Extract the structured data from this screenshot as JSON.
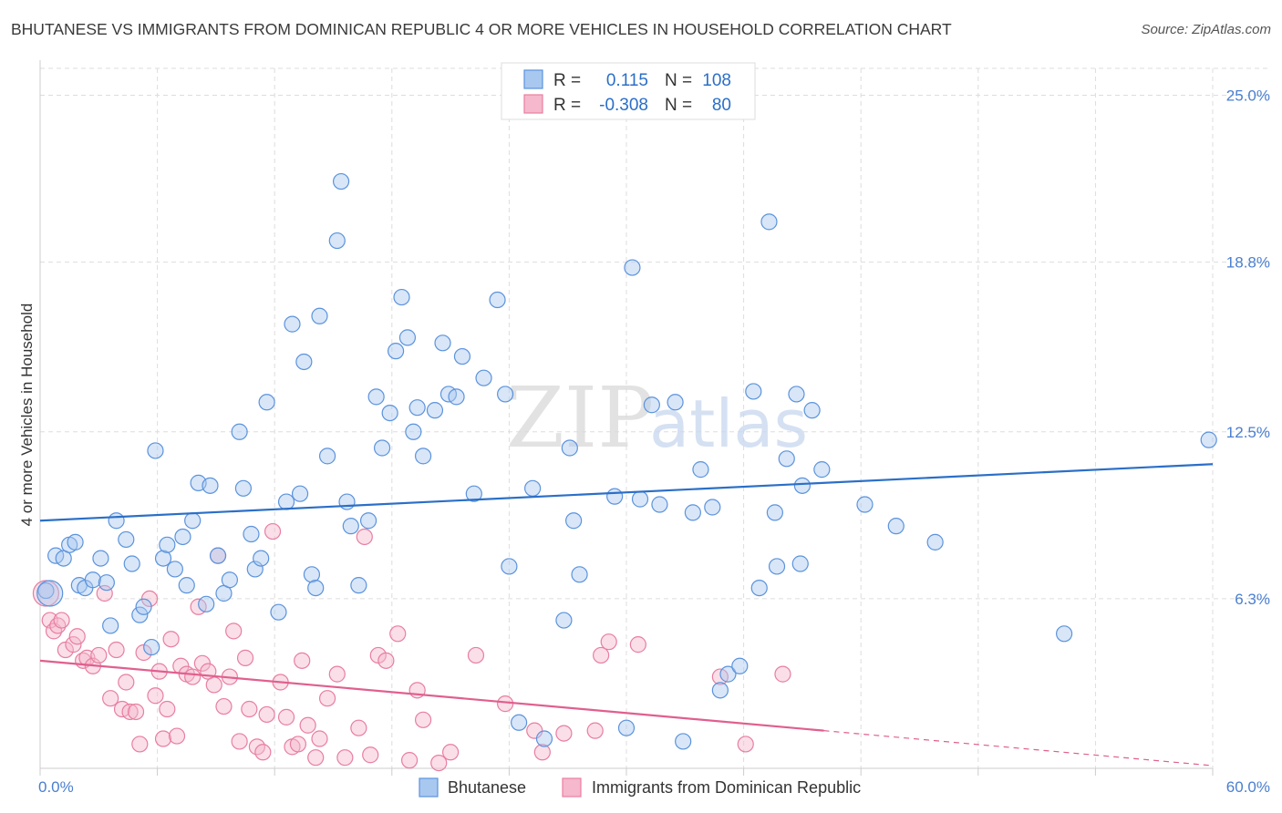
{
  "header": {
    "title": "BHUTANESE VS IMMIGRANTS FROM DOMINICAN REPUBLIC 4 OR MORE VEHICLES IN HOUSEHOLD CORRELATION CHART",
    "source": "Source: ZipAtlas.com"
  },
  "watermark": {
    "zip": "ZIP",
    "atlas": "atlas"
  },
  "colors": {
    "blue_fill": "#a9c8f0",
    "blue_stroke": "#5b93dc",
    "blue_line": "#2b6fc7",
    "pink_fill": "#f5b8cc",
    "pink_stroke": "#e87ea0",
    "pink_line": "#e05f8e",
    "grid": "#dddddd",
    "tick_text": "#4a7fcf"
  },
  "legend": {
    "rows": [
      {
        "r_label": "R =",
        "r_value": "0.115",
        "n_label": "N =",
        "n_value": "108"
      },
      {
        "r_label": "R =",
        "r_value": "-0.308",
        "n_label": "N =",
        "n_value": "80"
      }
    ]
  },
  "chart_data": {
    "type": "scatter",
    "title": "BHUTANESE VS IMMIGRANTS FROM DOMINICAN REPUBLIC 4 OR MORE VEHICLES IN HOUSEHOLD CORRELATION CHART",
    "ylabel": "4 or more Vehicles in Household",
    "xlim": [
      0,
      60
    ],
    "ylim": [
      0,
      26
    ],
    "y_ticks": [
      {
        "value": 6.3,
        "label": "6.3%"
      },
      {
        "value": 12.5,
        "label": "12.5%"
      },
      {
        "value": 18.8,
        "label": "18.8%"
      },
      {
        "value": 25.0,
        "label": "25.0%"
      }
    ],
    "x_tick_labels": {
      "min": "0.0%",
      "max": "60.0%"
    },
    "grid": true,
    "series": [
      {
        "name": "Bhutanese",
        "color": "#5b93dc",
        "trend": {
          "x0": 0,
          "y0": 9.2,
          "x1": 60,
          "y1": 11.3
        },
        "points": [
          [
            0.3,
            6.6
          ],
          [
            0.8,
            7.9
          ],
          [
            1.2,
            7.8
          ],
          [
            1.5,
            8.3
          ],
          [
            1.8,
            8.4
          ],
          [
            2.0,
            6.8
          ],
          [
            2.3,
            6.7
          ],
          [
            2.7,
            7.0
          ],
          [
            3.1,
            7.8
          ],
          [
            3.4,
            6.9
          ],
          [
            3.6,
            5.3
          ],
          [
            3.9,
            9.2
          ],
          [
            4.4,
            8.5
          ],
          [
            4.7,
            7.6
          ],
          [
            5.1,
            5.7
          ],
          [
            5.3,
            6.0
          ],
          [
            5.7,
            4.5
          ],
          [
            5.9,
            11.8
          ],
          [
            6.3,
            7.8
          ],
          [
            6.5,
            8.3
          ],
          [
            6.9,
            7.4
          ],
          [
            7.3,
            8.6
          ],
          [
            7.5,
            6.8
          ],
          [
            7.8,
            9.2
          ],
          [
            8.1,
            10.6
          ],
          [
            8.5,
            6.1
          ],
          [
            8.7,
            10.5
          ],
          [
            9.1,
            7.9
          ],
          [
            9.4,
            6.5
          ],
          [
            9.7,
            7.0
          ],
          [
            10.2,
            12.5
          ],
          [
            10.4,
            10.4
          ],
          [
            10.8,
            8.7
          ],
          [
            11.0,
            7.4
          ],
          [
            11.3,
            7.8
          ],
          [
            11.6,
            13.6
          ],
          [
            12.2,
            5.8
          ],
          [
            12.6,
            9.9
          ],
          [
            12.9,
            16.5
          ],
          [
            13.3,
            10.2
          ],
          [
            13.5,
            15.1
          ],
          [
            13.9,
            7.2
          ],
          [
            14.1,
            6.7
          ],
          [
            14.3,
            16.8
          ],
          [
            14.7,
            11.6
          ],
          [
            15.2,
            19.6
          ],
          [
            15.4,
            21.8
          ],
          [
            15.7,
            9.9
          ],
          [
            15.9,
            9.0
          ],
          [
            16.3,
            6.8
          ],
          [
            16.8,
            9.2
          ],
          [
            17.2,
            13.8
          ],
          [
            17.5,
            11.9
          ],
          [
            17.9,
            13.2
          ],
          [
            18.2,
            15.5
          ],
          [
            18.5,
            17.5
          ],
          [
            18.8,
            16.0
          ],
          [
            19.1,
            12.5
          ],
          [
            19.3,
            13.4
          ],
          [
            19.6,
            11.6
          ],
          [
            20.2,
            13.3
          ],
          [
            20.6,
            15.8
          ],
          [
            20.9,
            13.9
          ],
          [
            21.3,
            13.8
          ],
          [
            21.6,
            15.3
          ],
          [
            22.2,
            10.2
          ],
          [
            22.7,
            14.5
          ],
          [
            23.4,
            17.4
          ],
          [
            23.8,
            13.9
          ],
          [
            24.0,
            7.5
          ],
          [
            24.5,
            1.7
          ],
          [
            25.2,
            10.4
          ],
          [
            25.8,
            1.1
          ],
          [
            26.8,
            5.5
          ],
          [
            27.1,
            11.9
          ],
          [
            27.3,
            9.2
          ],
          [
            27.6,
            7.2
          ],
          [
            29.4,
            10.1
          ],
          [
            30.0,
            1.5
          ],
          [
            30.3,
            18.6
          ],
          [
            30.7,
            10.0
          ],
          [
            31.3,
            13.5
          ],
          [
            31.7,
            9.8
          ],
          [
            32.5,
            13.6
          ],
          [
            32.9,
            1.0
          ],
          [
            33.4,
            9.5
          ],
          [
            33.8,
            11.1
          ],
          [
            34.4,
            9.7
          ],
          [
            34.8,
            2.9
          ],
          [
            35.2,
            3.5
          ],
          [
            35.8,
            3.8
          ],
          [
            36.5,
            14.0
          ],
          [
            36.8,
            6.7
          ],
          [
            37.3,
            20.3
          ],
          [
            37.6,
            9.5
          ],
          [
            37.7,
            7.5
          ],
          [
            38.2,
            11.5
          ],
          [
            38.7,
            13.9
          ],
          [
            38.9,
            7.6
          ],
          [
            39.0,
            10.5
          ],
          [
            39.5,
            13.3
          ],
          [
            40.0,
            11.1
          ],
          [
            42.2,
            9.8
          ],
          [
            43.8,
            9.0
          ],
          [
            45.8,
            8.4
          ],
          [
            52.4,
            5.0
          ],
          [
            59.8,
            12.2
          ],
          [
            0.5,
            6.5
          ]
        ]
      },
      {
        "name": "Immigrants from Dominican Republic",
        "color": "#e87ea0",
        "trend": {
          "x0": 0,
          "y0": 4.0,
          "x1": 40.1,
          "y1": 1.4
        },
        "trend_dashed": {
          "x0": 40.1,
          "y0": 1.4,
          "x1": 60,
          "y1": 0.1
        },
        "points": [
          [
            0.3,
            6.5
          ],
          [
            0.5,
            5.5
          ],
          [
            0.7,
            5.1
          ],
          [
            0.9,
            5.3
          ],
          [
            1.1,
            5.5
          ],
          [
            1.3,
            4.4
          ],
          [
            1.7,
            4.6
          ],
          [
            1.9,
            4.9
          ],
          [
            2.2,
            4.0
          ],
          [
            2.4,
            4.1
          ],
          [
            2.7,
            3.8
          ],
          [
            3.0,
            4.2
          ],
          [
            3.3,
            6.5
          ],
          [
            3.6,
            2.6
          ],
          [
            3.9,
            4.4
          ],
          [
            4.2,
            2.2
          ],
          [
            4.4,
            3.2
          ],
          [
            4.6,
            2.1
          ],
          [
            4.9,
            2.1
          ],
          [
            5.1,
            0.9
          ],
          [
            5.3,
            4.3
          ],
          [
            5.6,
            6.3
          ],
          [
            5.9,
            2.7
          ],
          [
            6.1,
            3.6
          ],
          [
            6.3,
            1.1
          ],
          [
            6.5,
            2.2
          ],
          [
            6.7,
            4.8
          ],
          [
            7.0,
            1.2
          ],
          [
            7.2,
            3.8
          ],
          [
            7.5,
            3.5
          ],
          [
            7.8,
            3.4
          ],
          [
            8.1,
            6.0
          ],
          [
            8.3,
            3.9
          ],
          [
            8.6,
            3.6
          ],
          [
            8.9,
            3.1
          ],
          [
            9.1,
            7.9
          ],
          [
            9.4,
            2.3
          ],
          [
            9.7,
            3.4
          ],
          [
            9.9,
            5.1
          ],
          [
            10.2,
            1.0
          ],
          [
            10.5,
            4.1
          ],
          [
            10.7,
            2.2
          ],
          [
            11.1,
            0.8
          ],
          [
            11.4,
            0.6
          ],
          [
            11.6,
            2.0
          ],
          [
            11.9,
            8.8
          ],
          [
            12.3,
            3.2
          ],
          [
            12.6,
            1.9
          ],
          [
            12.9,
            0.8
          ],
          [
            13.2,
            0.9
          ],
          [
            13.4,
            4.0
          ],
          [
            13.7,
            1.6
          ],
          [
            14.1,
            0.4
          ],
          [
            14.3,
            1.1
          ],
          [
            14.7,
            2.6
          ],
          [
            15.2,
            3.5
          ],
          [
            15.6,
            0.4
          ],
          [
            16.3,
            1.5
          ],
          [
            16.6,
            8.6
          ],
          [
            16.9,
            0.5
          ],
          [
            17.3,
            4.2
          ],
          [
            17.7,
            4.0
          ],
          [
            18.3,
            5.0
          ],
          [
            18.9,
            0.3
          ],
          [
            19.3,
            2.9
          ],
          [
            19.6,
            1.8
          ],
          [
            20.4,
            0.2
          ],
          [
            21.0,
            0.6
          ],
          [
            22.3,
            4.2
          ],
          [
            23.8,
            2.4
          ],
          [
            25.3,
            1.4
          ],
          [
            25.7,
            0.6
          ],
          [
            26.8,
            1.3
          ],
          [
            28.4,
            1.4
          ],
          [
            28.7,
            4.2
          ],
          [
            29.1,
            4.7
          ],
          [
            30.6,
            4.6
          ],
          [
            34.8,
            3.4
          ],
          [
            36.1,
            0.9
          ],
          [
            38.0,
            3.5
          ]
        ]
      }
    ]
  },
  "bottom_legend": {
    "items": [
      {
        "label": "Bhutanese"
      },
      {
        "label": "Immigrants from Dominican Republic"
      }
    ]
  }
}
